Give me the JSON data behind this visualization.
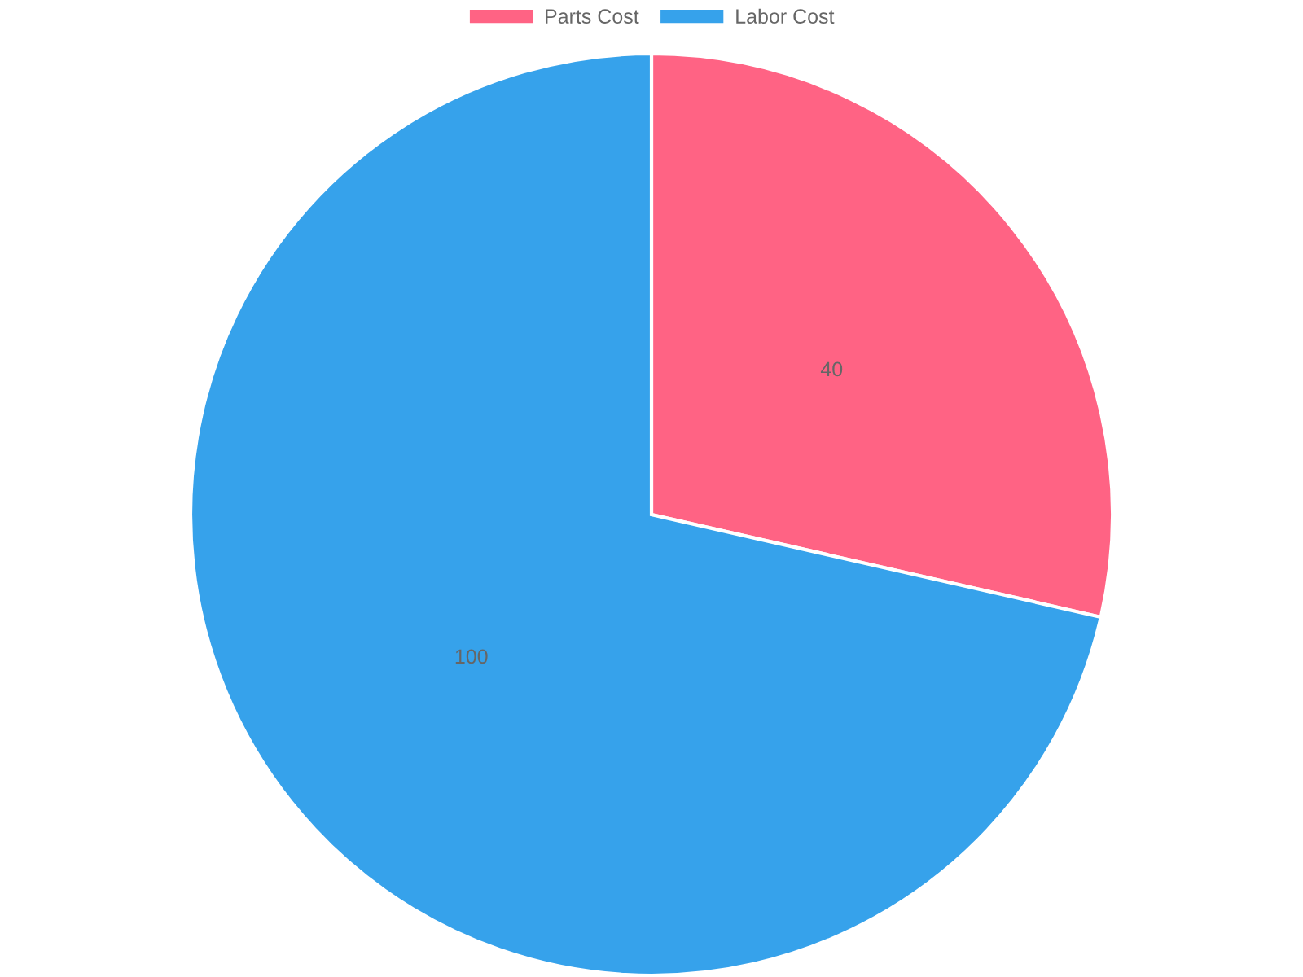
{
  "chart_data": {
    "type": "pie",
    "categories": [
      "Parts Cost",
      "Labor Cost"
    ],
    "values": [
      40,
      100
    ],
    "colors": [
      "#ff6384",
      "#36a2eb"
    ],
    "data_labels": true,
    "legend": "top"
  }
}
